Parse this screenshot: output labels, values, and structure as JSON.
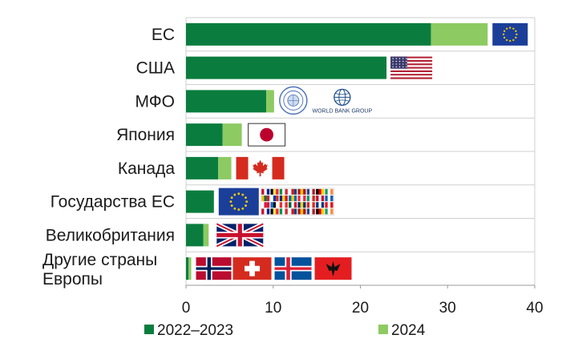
{
  "chart_data": {
    "type": "bar",
    "orientation": "horizontal",
    "stacked": true,
    "categories": [
      [
        "ЕС"
      ],
      [
        "США"
      ],
      [
        "МФО"
      ],
      [
        "Япония"
      ],
      [
        "Канада"
      ],
      [
        "Государства ЕС"
      ],
      [
        "Великобритания"
      ],
      [
        "Другие страны",
        "Европы"
      ]
    ],
    "series": [
      {
        "name": "2022–2023",
        "color": "#0a7d3e",
        "values": [
          28.1,
          23.0,
          9.2,
          4.2,
          3.7,
          3.2,
          2.0,
          0.3
        ]
      },
      {
        "name": "2024",
        "color": "#8dca62",
        "values": [
          6.5,
          0.0,
          0.9,
          2.2,
          1.5,
          0.0,
          0.6,
          0.3
        ]
      }
    ],
    "x_ticks": [
      "0",
      "10",
      "20",
      "30",
      "40"
    ],
    "xlim": [
      0,
      40
    ],
    "grid": "horizontal",
    "legend": "bottom",
    "flags": [
      [
        "eu-flag-icon"
      ],
      [
        "us-flag-icon"
      ],
      [
        "imf-seal-icon",
        "world-bank-group-logo"
      ],
      [
        "japan-flag-icon"
      ],
      [
        "canada-flag-icon"
      ],
      [
        "eu-flag-icon",
        "eu-member-state-flags-icon"
      ],
      [
        "uk-flag-icon"
      ],
      [
        "norway-flag-icon",
        "switzerland-flag-icon",
        "iceland-flag-icon",
        "albania-flag-icon"
      ]
    ],
    "logo_text": {
      "world_bank": "WORLD BANK GROUP"
    }
  }
}
